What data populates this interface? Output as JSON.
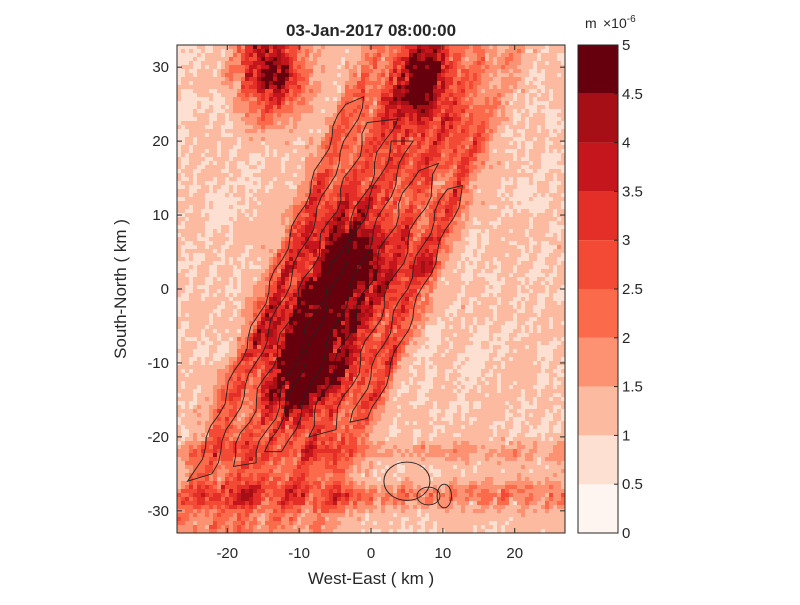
{
  "chart_data": {
    "type": "heatmap",
    "title": "03-Jan-2017 08:00:00",
    "xlabel": "West-East ( km )",
    "ylabel": "South-North ( km )",
    "xlim": [
      -27,
      27
    ],
    "ylim": [
      -33,
      33
    ],
    "x_ticks": [
      -20,
      -10,
      0,
      10,
      20
    ],
    "y_ticks": [
      30,
      20,
      10,
      0,
      -10,
      -20,
      -30
    ],
    "grid": false,
    "colorbar": {
      "unit": "m",
      "exponent_label": "×10",
      "exponent_power": "-6",
      "range": [
        0,
        5
      ],
      "levels": [
        0,
        0.5,
        1,
        1.5,
        2,
        2.5,
        3,
        3.5,
        4,
        4.5,
        5
      ],
      "tick_labels": [
        "0",
        "0.5",
        "1",
        "1.5",
        "2",
        "2.5",
        "3",
        "3.5",
        "4",
        "4.5",
        "5"
      ],
      "colors": [
        "#fff5f0",
        "#fee0d2",
        "#fcbba1",
        "#fc9272",
        "#fb6a4a",
        "#f34a36",
        "#e32f27",
        "#c4161c",
        "#a50f15",
        "#67000d"
      ]
    },
    "description_values": {
      "band_orientation": "SSW-NNE",
      "band_centers_x_at_y0": [
        -13,
        -8,
        -4,
        1,
        6
      ],
      "high_value_regions": [
        {
          "x": -14,
          "y": 30,
          "value": 4.5
        },
        {
          "x": 7,
          "y": 28,
          "value": 4.2
        },
        {
          "x": -7,
          "y": -5,
          "value": 3.8
        },
        {
          "x": -3,
          "y": 3,
          "value": 3.5
        },
        {
          "x": -10,
          "y": -12,
          "value": 3.4
        }
      ]
    }
  }
}
